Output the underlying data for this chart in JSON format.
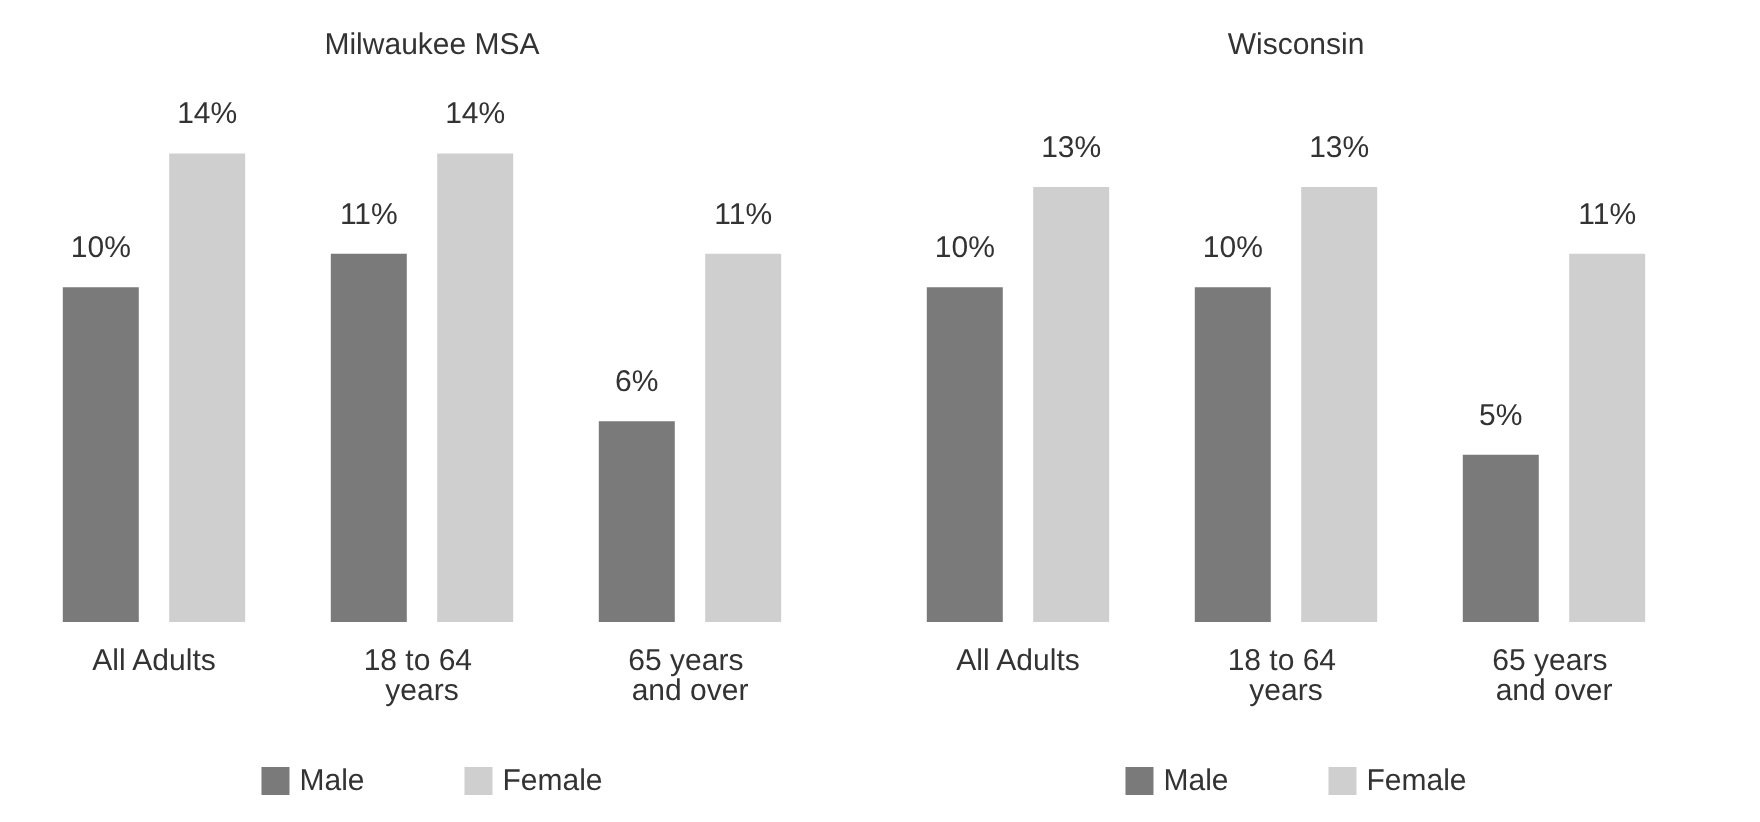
{
  "chart_data": [
    {
      "type": "bar",
      "title": "Milwaukee MSA",
      "categories": [
        "All Adults",
        "18 to 64 years",
        "65 years and over"
      ],
      "series": [
        {
          "name": "Male",
          "color": "#7a7a7a",
          "values": [
            10,
            11,
            6
          ],
          "value_labels": [
            "10%",
            "11%",
            "6%"
          ]
        },
        {
          "name": "Female",
          "color": "#cfcfcf",
          "values": [
            14,
            14,
            11
          ],
          "value_labels": [
            "14%",
            "14%",
            "11%"
          ]
        }
      ],
      "legend": "bottom",
      "grid": false
    },
    {
      "type": "bar",
      "title": "Wisconsin",
      "categories": [
        "All Adults",
        "18 to 64 years",
        "65 years and over"
      ],
      "series": [
        {
          "name": "Male",
          "color": "#7a7a7a",
          "values": [
            10,
            10,
            5
          ],
          "value_labels": [
            "10%",
            "10%",
            "5%"
          ]
        },
        {
          "name": "Female",
          "color": "#cfcfcf",
          "values": [
            13,
            13,
            11
          ],
          "value_labels": [
            "13%",
            "13%",
            "11%"
          ]
        }
      ],
      "legend": "bottom",
      "grid": false
    }
  ]
}
